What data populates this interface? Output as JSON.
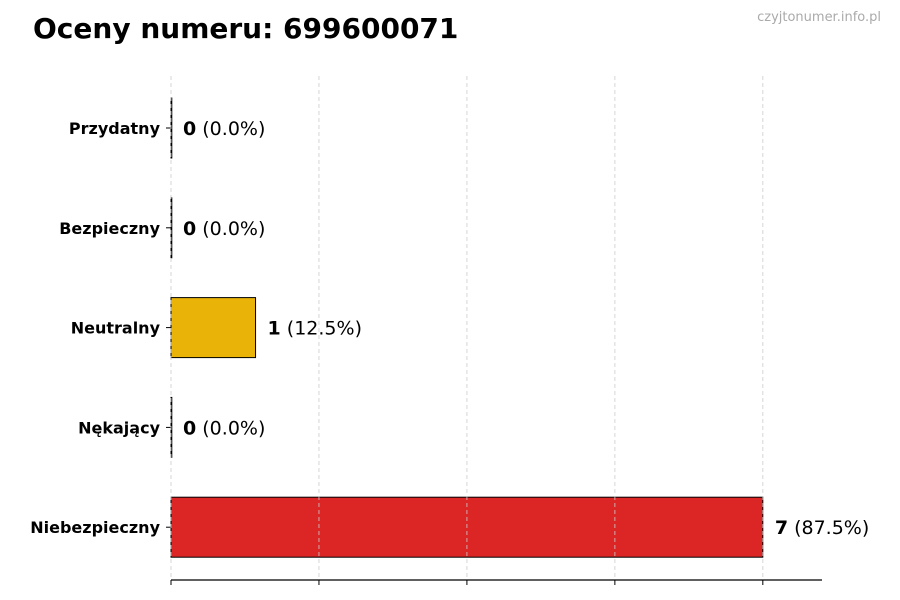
{
  "watermark": "czyjtonumer.info.pl",
  "chart_data": {
    "type": "bar",
    "orientation": "horizontal",
    "title": "Oceny numeru: 699600071",
    "xlabel": "",
    "ylabel": "",
    "categories": [
      "Przydatny",
      "Bezpieczny",
      "Neutralny",
      "Nękający",
      "Niebezpieczny"
    ],
    "values": [
      0,
      0,
      1,
      0,
      7
    ],
    "percent_labels": [
      "(0.0%)",
      "(0.0%)",
      "(12.5%)",
      "(0.0%)",
      "(87.5%)"
    ],
    "colors": [
      "#22C55E",
      "#3B82F6",
      "#EAB308",
      "#F97316",
      "#DC2626"
    ],
    "xlim": [
      0,
      7.7
    ],
    "xticks": [
      0,
      1.75,
      3.5,
      5.25,
      7
    ],
    "xtick_labels_shown": false,
    "grid": "x-dashed"
  }
}
